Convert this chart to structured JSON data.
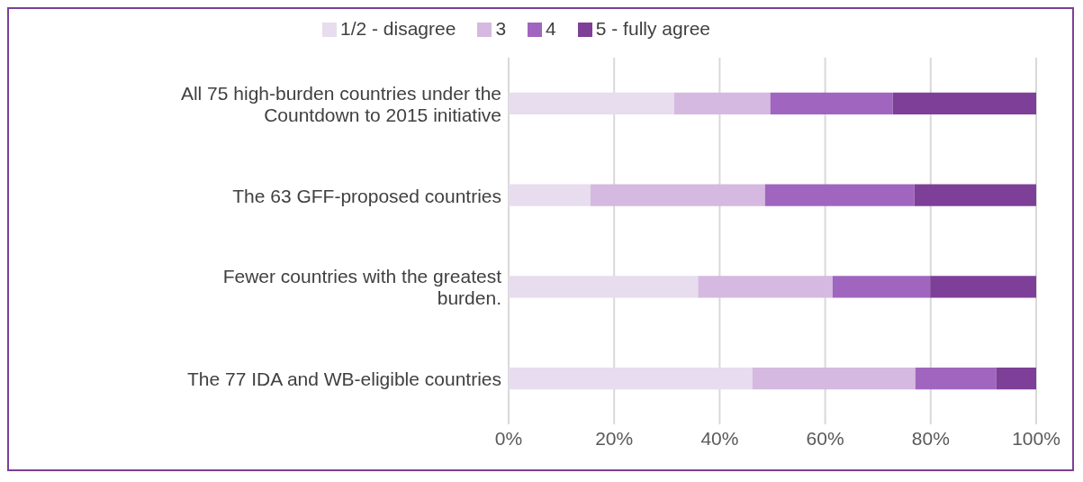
{
  "chart_data": {
    "type": "bar",
    "orientation": "horizontal",
    "stacked": true,
    "categories": [
      "All 75 high-burden countries under the Countdown to 2015 initiative",
      "The 63 GFF-proposed  countries",
      "Fewer countries with the greatest burden.",
      "The 77 IDA and WB-eligible countries"
    ],
    "series": [
      {
        "name": "1/2 - disagree",
        "color": "#e8dcef",
        "values": [
          31.4,
          15.5,
          35.9,
          46.2
        ]
      },
      {
        "name": "3",
        "color": "#d5b9e0",
        "values": [
          18.2,
          33.1,
          25.5,
          30.9
        ]
      },
      {
        "name": "4",
        "color": "#a066bf",
        "values": [
          23.2,
          28.3,
          18.5,
          15.3
        ]
      },
      {
        "name": "5 - fully agree",
        "color": "#7d3f98",
        "values": [
          27.2,
          23.1,
          20.1,
          7.6
        ]
      }
    ],
    "xlim": [
      0,
      100
    ],
    "xticks": [
      {
        "value": 0,
        "label": "0%"
      },
      {
        "value": 20,
        "label": "20%"
      },
      {
        "value": 40,
        "label": "40%"
      },
      {
        "value": 60,
        "label": "60%"
      },
      {
        "value": 80,
        "label": "80%"
      },
      {
        "value": 100,
        "label": "100%"
      }
    ],
    "grid": "x",
    "legend": "top"
  }
}
